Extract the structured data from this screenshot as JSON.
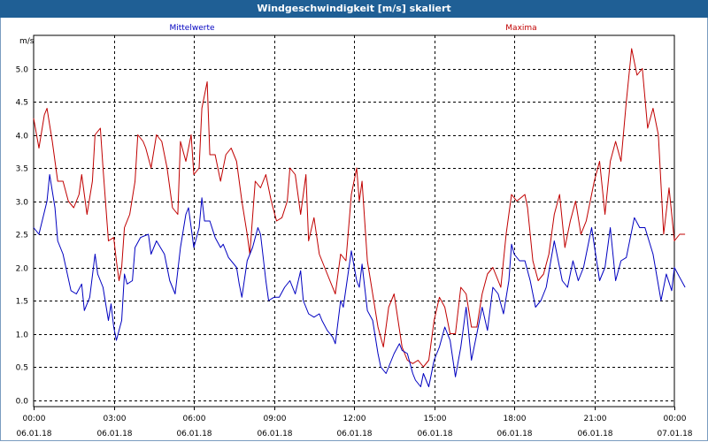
{
  "window": {
    "title": "Windgeschwindigkeit [m/s] skaliert"
  },
  "chart_data": {
    "type": "line",
    "title": "Windgeschwindigkeit [m/s] skaliert",
    "ylabel": "m/s",
    "xlabel": "",
    "ylim": [
      -0.1,
      5.5
    ],
    "xlim": [
      0,
      24
    ],
    "grid": true,
    "y_ticks": [
      "0.0",
      "0.5",
      "1.0",
      "1.5",
      "2.0",
      "2.5",
      "3.0",
      "3.5",
      "4.0",
      "4.5",
      "5.0"
    ],
    "x_ticks": [
      {
        "time": "00:00",
        "date": "06.01.18"
      },
      {
        "time": "03:00",
        "date": "06.01.18"
      },
      {
        "time": "06:00",
        "date": "06.01.18"
      },
      {
        "time": "09:00",
        "date": "06.01.18"
      },
      {
        "time": "12:00",
        "date": "06.01.18"
      },
      {
        "time": "15:00",
        "date": "06.01.18"
      },
      {
        "time": "18:00",
        "date": "06.01.18"
      },
      {
        "time": "21:00",
        "date": "06.01.18"
      },
      {
        "time": "00:00",
        "date": "07.01.18"
      }
    ],
    "series": [
      {
        "name": "Mittelwerte",
        "color": "#0000c0",
        "points": [
          [
            0,
            2.6
          ],
          [
            0.2,
            2.5
          ],
          [
            0.5,
            3.0
          ],
          [
            0.6,
            3.4
          ],
          [
            0.8,
            2.9
          ],
          [
            0.9,
            2.4
          ],
          [
            1.1,
            2.2
          ],
          [
            1.4,
            1.65
          ],
          [
            1.6,
            1.6
          ],
          [
            1.8,
            1.75
          ],
          [
            1.9,
            1.35
          ],
          [
            2.1,
            1.55
          ],
          [
            2.3,
            2.2
          ],
          [
            2.4,
            1.9
          ],
          [
            2.6,
            1.7
          ],
          [
            2.8,
            1.2
          ],
          [
            2.9,
            1.45
          ],
          [
            3.0,
            1.1
          ],
          [
            3.1,
            0.9
          ],
          [
            3.3,
            1.2
          ],
          [
            3.4,
            1.9
          ],
          [
            3.5,
            1.75
          ],
          [
            3.7,
            1.8
          ],
          [
            3.8,
            2.3
          ],
          [
            4.0,
            2.45
          ],
          [
            4.3,
            2.5
          ],
          [
            4.4,
            2.2
          ],
          [
            4.6,
            2.4
          ],
          [
            4.9,
            2.2
          ],
          [
            5.1,
            1.8
          ],
          [
            5.3,
            1.6
          ],
          [
            5.5,
            2.3
          ],
          [
            5.7,
            2.8
          ],
          [
            5.8,
            2.9
          ],
          [
            6.0,
            2.3
          ],
          [
            6.2,
            2.6
          ],
          [
            6.3,
            3.05
          ],
          [
            6.4,
            2.7
          ],
          [
            6.6,
            2.7
          ],
          [
            6.8,
            2.45
          ],
          [
            7.0,
            2.3
          ],
          [
            7.1,
            2.35
          ],
          [
            7.3,
            2.15
          ],
          [
            7.6,
            2.0
          ],
          [
            7.7,
            1.75
          ],
          [
            7.8,
            1.55
          ],
          [
            8.0,
            2.1
          ],
          [
            8.2,
            2.3
          ],
          [
            8.4,
            2.6
          ],
          [
            8.5,
            2.5
          ],
          [
            8.7,
            1.8
          ],
          [
            8.8,
            1.5
          ],
          [
            9.0,
            1.55
          ],
          [
            9.2,
            1.55
          ],
          [
            9.4,
            1.7
          ],
          [
            9.6,
            1.8
          ],
          [
            9.8,
            1.6
          ],
          [
            10.0,
            1.95
          ],
          [
            10.1,
            1.5
          ],
          [
            10.3,
            1.3
          ],
          [
            10.5,
            1.25
          ],
          [
            10.7,
            1.3
          ],
          [
            10.8,
            1.2
          ],
          [
            11.0,
            1.05
          ],
          [
            11.2,
            0.95
          ],
          [
            11.3,
            0.85
          ],
          [
            11.5,
            1.5
          ],
          [
            11.6,
            1.4
          ],
          [
            11.9,
            2.25
          ],
          [
            12.1,
            1.8
          ],
          [
            12.2,
            1.7
          ],
          [
            12.3,
            2.05
          ],
          [
            12.5,
            1.35
          ],
          [
            12.7,
            1.2
          ],
          [
            12.9,
            0.7
          ],
          [
            13.0,
            0.5
          ],
          [
            13.2,
            0.4
          ],
          [
            13.5,
            0.7
          ],
          [
            13.7,
            0.85
          ],
          [
            13.8,
            0.75
          ],
          [
            14.0,
            0.7
          ],
          [
            14.2,
            0.4
          ],
          [
            14.3,
            0.3
          ],
          [
            14.5,
            0.2
          ],
          [
            14.6,
            0.4
          ],
          [
            14.8,
            0.2
          ],
          [
            15.0,
            0.6
          ],
          [
            15.2,
            0.8
          ],
          [
            15.4,
            1.1
          ],
          [
            15.6,
            0.9
          ],
          [
            15.8,
            0.35
          ],
          [
            16.0,
            0.8
          ],
          [
            16.2,
            1.4
          ],
          [
            16.4,
            0.6
          ],
          [
            16.6,
            1.0
          ],
          [
            16.8,
            1.4
          ],
          [
            17.0,
            1.05
          ],
          [
            17.2,
            1.7
          ],
          [
            17.4,
            1.6
          ],
          [
            17.6,
            1.3
          ],
          [
            17.8,
            1.8
          ],
          [
            17.9,
            2.35
          ],
          [
            18.0,
            2.2
          ],
          [
            18.2,
            2.1
          ],
          [
            18.4,
            2.1
          ],
          [
            18.6,
            1.8
          ],
          [
            18.8,
            1.4
          ],
          [
            19.0,
            1.5
          ],
          [
            19.2,
            1.7
          ],
          [
            19.5,
            2.4
          ],
          [
            19.6,
            2.2
          ],
          [
            19.8,
            1.8
          ],
          [
            20.0,
            1.7
          ],
          [
            20.2,
            2.1
          ],
          [
            20.4,
            1.8
          ],
          [
            20.6,
            2.0
          ],
          [
            20.9,
            2.6
          ],
          [
            21.2,
            1.8
          ],
          [
            21.4,
            2.0
          ],
          [
            21.6,
            2.6
          ],
          [
            21.8,
            1.8
          ],
          [
            22.0,
            2.1
          ],
          [
            22.2,
            2.15
          ],
          [
            22.5,
            2.75
          ],
          [
            22.7,
            2.6
          ],
          [
            22.9,
            2.6
          ],
          [
            23.2,
            2.2
          ],
          [
            23.5,
            1.5
          ],
          [
            23.7,
            1.9
          ],
          [
            23.9,
            1.65
          ],
          [
            24.0,
            2.0
          ],
          [
            24.2,
            1.85
          ],
          [
            24.4,
            1.7
          ]
        ]
      },
      {
        "name": "Maxima",
        "color": "#c00000",
        "points": [
          [
            0,
            4.25
          ],
          [
            0.2,
            3.8
          ],
          [
            0.4,
            4.3
          ],
          [
            0.5,
            4.4
          ],
          [
            0.7,
            3.9
          ],
          [
            0.9,
            3.3
          ],
          [
            1.1,
            3.3
          ],
          [
            1.3,
            3.0
          ],
          [
            1.5,
            2.9
          ],
          [
            1.7,
            3.1
          ],
          [
            1.8,
            3.4
          ],
          [
            2.0,
            2.8
          ],
          [
            2.2,
            3.3
          ],
          [
            2.3,
            4.0
          ],
          [
            2.5,
            4.1
          ],
          [
            2.6,
            3.5
          ],
          [
            2.8,
            2.4
          ],
          [
            3.0,
            2.45
          ],
          [
            3.1,
            2.1
          ],
          [
            3.2,
            1.8
          ],
          [
            3.3,
            2.0
          ],
          [
            3.4,
            2.6
          ],
          [
            3.6,
            2.8
          ],
          [
            3.8,
            3.3
          ],
          [
            3.9,
            4.0
          ],
          [
            4.1,
            3.9
          ],
          [
            4.2,
            3.8
          ],
          [
            4.4,
            3.5
          ],
          [
            4.6,
            4.0
          ],
          [
            4.8,
            3.9
          ],
          [
            5.0,
            3.5
          ],
          [
            5.2,
            2.9
          ],
          [
            5.4,
            2.8
          ],
          [
            5.5,
            3.9
          ],
          [
            5.7,
            3.6
          ],
          [
            5.9,
            4.0
          ],
          [
            6.0,
            3.4
          ],
          [
            6.2,
            3.5
          ],
          [
            6.3,
            4.4
          ],
          [
            6.5,
            4.8
          ],
          [
            6.6,
            3.7
          ],
          [
            6.8,
            3.7
          ],
          [
            7.0,
            3.3
          ],
          [
            7.2,
            3.7
          ],
          [
            7.4,
            3.8
          ],
          [
            7.6,
            3.6
          ],
          [
            7.8,
            3.0
          ],
          [
            8.0,
            2.5
          ],
          [
            8.1,
            2.2
          ],
          [
            8.3,
            3.3
          ],
          [
            8.5,
            3.2
          ],
          [
            8.7,
            3.4
          ],
          [
            8.9,
            3.0
          ],
          [
            9.1,
            2.7
          ],
          [
            9.3,
            2.75
          ],
          [
            9.5,
            3.0
          ],
          [
            9.6,
            3.5
          ],
          [
            9.8,
            3.4
          ],
          [
            10.0,
            2.8
          ],
          [
            10.2,
            3.4
          ],
          [
            10.3,
            2.4
          ],
          [
            10.5,
            2.75
          ],
          [
            10.7,
            2.2
          ],
          [
            10.9,
            2.0
          ],
          [
            11.1,
            1.8
          ],
          [
            11.3,
            1.6
          ],
          [
            11.5,
            2.2
          ],
          [
            11.7,
            2.1
          ],
          [
            11.9,
            3.1
          ],
          [
            12.1,
            3.5
          ],
          [
            12.2,
            3.0
          ],
          [
            12.3,
            3.3
          ],
          [
            12.5,
            2.1
          ],
          [
            12.7,
            1.6
          ],
          [
            12.9,
            1.1
          ],
          [
            13.1,
            0.8
          ],
          [
            13.3,
            1.4
          ],
          [
            13.5,
            1.6
          ],
          [
            13.8,
            0.8
          ],
          [
            14.0,
            0.6
          ],
          [
            14.2,
            0.55
          ],
          [
            14.4,
            0.6
          ],
          [
            14.6,
            0.5
          ],
          [
            14.8,
            0.6
          ],
          [
            15.0,
            1.2
          ],
          [
            15.2,
            1.55
          ],
          [
            15.4,
            1.4
          ],
          [
            15.6,
            1.0
          ],
          [
            15.8,
            1.0
          ],
          [
            16.0,
            1.7
          ],
          [
            16.2,
            1.6
          ],
          [
            16.4,
            1.1
          ],
          [
            16.6,
            1.1
          ],
          [
            16.8,
            1.6
          ],
          [
            17.0,
            1.9
          ],
          [
            17.2,
            2.0
          ],
          [
            17.5,
            1.7
          ],
          [
            17.7,
            2.5
          ],
          [
            17.9,
            3.1
          ],
          [
            18.1,
            3.0
          ],
          [
            18.4,
            3.1
          ],
          [
            18.5,
            2.9
          ],
          [
            18.7,
            2.1
          ],
          [
            18.9,
            1.8
          ],
          [
            19.1,
            1.9
          ],
          [
            19.3,
            2.2
          ],
          [
            19.5,
            2.8
          ],
          [
            19.7,
            3.1
          ],
          [
            19.9,
            2.3
          ],
          [
            20.1,
            2.7
          ],
          [
            20.3,
            3.0
          ],
          [
            20.5,
            2.5
          ],
          [
            20.7,
            2.7
          ],
          [
            21.0,
            3.3
          ],
          [
            21.2,
            3.6
          ],
          [
            21.4,
            2.8
          ],
          [
            21.6,
            3.6
          ],
          [
            21.8,
            3.9
          ],
          [
            22.0,
            3.6
          ],
          [
            22.2,
            4.5
          ],
          [
            22.4,
            5.3
          ],
          [
            22.6,
            4.9
          ],
          [
            22.8,
            5.0
          ],
          [
            23.0,
            4.1
          ],
          [
            23.2,
            4.4
          ],
          [
            23.4,
            4.0
          ],
          [
            23.6,
            2.5
          ],
          [
            23.8,
            3.2
          ],
          [
            24.0,
            2.4
          ],
          [
            24.2,
            2.5
          ],
          [
            24.4,
            2.5
          ]
        ]
      }
    ]
  }
}
